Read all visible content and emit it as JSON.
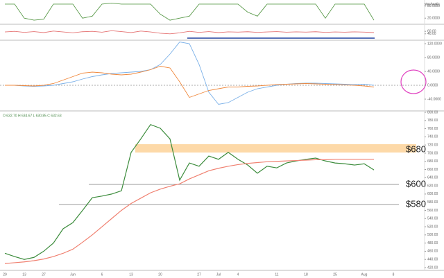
{
  "chart_data": [
    {
      "type": "line",
      "header": "O 632.70 H 634.67 L 630.85 C 632.63",
      "annotations": [
        {
          "text": "$680"
        },
        {
          "text": "$600"
        },
        {
          "text": "$580"
        }
      ],
      "categories": [
        "29",
        null,
        "13",
        null,
        "27",
        null,
        null,
        "Jun",
        null,
        null,
        "6",
        null,
        null,
        "13",
        null,
        null,
        "20",
        null,
        null,
        null,
        "27",
        null,
        "Jul",
        null,
        "4",
        null,
        null,
        null,
        "11",
        null,
        null,
        "18",
        null,
        null,
        "25",
        null,
        null,
        "Aug",
        null,
        null,
        "8"
      ],
      "series": [
        {
          "color": "#3c8c3c",
          "values": [
            455,
            447,
            440,
            445,
            460,
            480,
            515,
            530,
            560,
            591,
            595,
            600,
            608,
            702,
            735,
            770,
            761,
            735,
            634,
            676,
            668,
            693,
            685,
            702,
            685,
            671,
            651,
            668,
            664,
            676,
            681,
            685,
            688,
            681,
            676,
            674,
            671,
            674,
            659,
            null,
            null
          ]
        },
        {
          "color": "#f08070",
          "values": [
            430,
            432,
            434,
            437,
            441,
            447,
            455,
            465,
            482,
            500,
            520,
            540,
            560,
            577,
            590,
            603,
            612,
            619,
            625,
            637,
            647,
            657,
            663,
            668,
            672,
            675,
            677,
            679,
            680,
            681,
            682,
            683,
            684,
            684,
            685,
            685,
            685,
            685,
            685,
            null,
            null
          ]
        }
      ],
      "ylim": [
        420,
        800
      ],
      "yticks": [
        {
          "value": 420,
          "label": "420.00"
        },
        {
          "value": 440,
          "label": "440.00"
        },
        {
          "value": 460,
          "label": "460.00"
        },
        {
          "value": 480,
          "label": "480.00"
        },
        {
          "value": 500,
          "label": "500.00"
        },
        {
          "value": 520,
          "label": "520.00"
        },
        {
          "value": 540,
          "label": "540.00"
        },
        {
          "value": 560,
          "label": "560.00"
        },
        {
          "value": 580,
          "label": "580.00"
        },
        {
          "value": 600,
          "label": "600.00"
        },
        {
          "value": 620,
          "label": "620.00"
        },
        {
          "value": 640,
          "label": "640.00"
        },
        {
          "value": 660,
          "label": "660.00"
        },
        {
          "value": 680,
          "label": "680.00"
        },
        {
          "value": 700,
          "label": "700.00"
        },
        {
          "value": 720,
          "label": "720.00"
        },
        {
          "value": 740,
          "label": "740.00"
        },
        {
          "value": 760,
          "label": "760.00"
        },
        {
          "value": 780,
          "label": "780.00"
        },
        {
          "value": 800,
          "label": "800.00"
        }
      ]
    },
    {
      "type": "line",
      "series": [
        {
          "color": "#7ab0e8",
          "values": [
            0,
            0,
            -2,
            -3,
            -2,
            0,
            5,
            10,
            18,
            25,
            30,
            34,
            36,
            38,
            40,
            45,
            60,
            90,
            125,
            120,
            60,
            -20,
            -55,
            -50,
            -35,
            -20,
            -10,
            -5,
            0,
            3,
            5,
            6,
            6,
            5,
            4,
            3,
            2,
            3,
            0,
            null,
            null
          ]
        },
        {
          "color": "#f0883c",
          "values": [
            0,
            0,
            -1,
            -2,
            0,
            5,
            15,
            25,
            35,
            38,
            36,
            32,
            30,
            32,
            38,
            45,
            55,
            50,
            10,
            -35,
            -25,
            -15,
            -10,
            -5,
            -5,
            -3,
            -2,
            0,
            2,
            3,
            4,
            5,
            4,
            3,
            2,
            1,
            0,
            -2,
            -5,
            null,
            null
          ]
        }
      ],
      "ylim": [
        -70,
        130
      ],
      "yticks": [
        {
          "value": -40,
          "label": "-40.0000"
        },
        {
          "value": 0,
          "label": "0.0000"
        },
        {
          "value": 40,
          "label": "40.0000"
        },
        {
          "value": 80,
          "label": "80.0000"
        },
        {
          "value": 120,
          "label": "120.0000"
        }
      ],
      "grid_zero": true
    },
    {
      "type": "line",
      "indicator": "stochastic",
      "series": [
        {
          "color": "#5a9a4a",
          "values": [
            90,
            90,
            20,
            10,
            15,
            90,
            90,
            90,
            20,
            30,
            90,
            95,
            90,
            90,
            90,
            90,
            40,
            10,
            20,
            30,
            90,
            90,
            90,
            90,
            90,
            50,
            30,
            90,
            90,
            90,
            90,
            90,
            90,
            20,
            90,
            90,
            90,
            90,
            10,
            null,
            null
          ]
        }
      ],
      "ylim": [
        0,
        100
      ],
      "yticks": [
        {
          "value": 20,
          "label": "20.0000"
        },
        {
          "value": 80,
          "label": "80.0000"
        }
      ]
    },
    {
      "type": "line",
      "series": [
        {
          "color": "#e57373",
          "values": [
            55,
            60,
            52,
            58,
            50,
            62,
            55,
            48,
            57,
            60,
            53,
            65,
            58,
            50,
            62,
            55,
            45,
            40,
            48,
            60,
            52,
            58,
            50,
            56,
            54,
            57,
            52,
            55,
            58,
            53,
            56,
            54,
            57,
            52,
            55,
            53,
            56,
            54,
            50,
            null,
            null
          ]
        }
      ],
      "ylim": [
        0,
        100
      ],
      "yticks": [
        {
          "value": 40,
          "label": "40.00"
        },
        {
          "value": 60,
          "label": "60.00"
        }
      ]
    }
  ]
}
